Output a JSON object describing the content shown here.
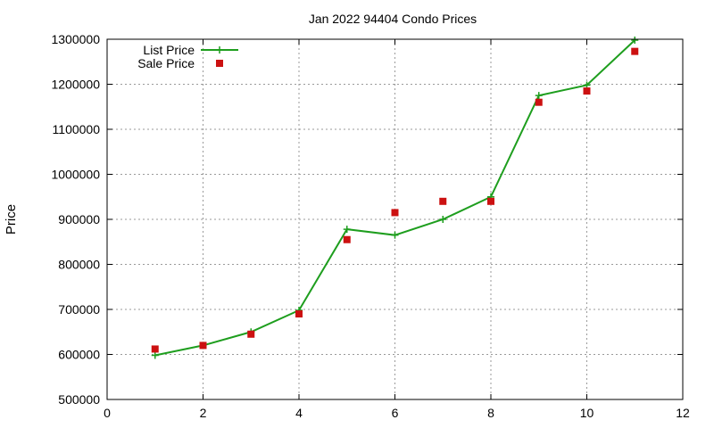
{
  "chart_data": {
    "type": "line",
    "title": "Jan 2022 94404 Condo Prices",
    "xlabel": "",
    "ylabel": "Price",
    "xlim": [
      0,
      12
    ],
    "ylim": [
      500000,
      1300000
    ],
    "x_ticks": [
      "0",
      "2",
      "4",
      "6",
      "8",
      "10",
      "12"
    ],
    "y_ticks": [
      "500000",
      "600000",
      "700000",
      "800000",
      "900000",
      "1000000",
      "1100000",
      "1200000",
      "1300000"
    ],
    "grid": true,
    "legend_position": "top-left",
    "x": [
      1,
      2,
      3,
      4,
      5,
      6,
      7,
      8,
      9,
      10,
      11
    ],
    "series": [
      {
        "name": "List Price",
        "style": "line-with-plus-markers",
        "color": "#1e9e1e",
        "values": [
          598000,
          620000,
          650000,
          698000,
          878000,
          865000,
          900000,
          950000,
          1175000,
          1198000,
          1298000
        ]
      },
      {
        "name": "Sale Price",
        "style": "square-markers",
        "color": "#cc1111",
        "values": [
          612000,
          620000,
          645000,
          690000,
          855000,
          915000,
          940000,
          940000,
          1160000,
          1185000,
          1273000
        ]
      }
    ]
  }
}
